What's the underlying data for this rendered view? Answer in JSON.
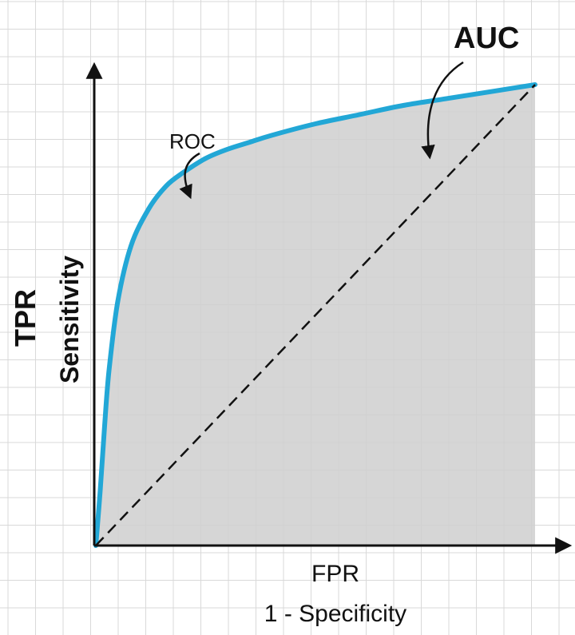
{
  "chart_data": {
    "type": "area",
    "title": "",
    "xlabel": "FPR",
    "xlabel_secondary": "1 - Specificity",
    "ylabel": "TPR",
    "ylabel_secondary": "Sensitivity",
    "xlim": [
      0,
      1
    ],
    "ylim": [
      0,
      1
    ],
    "grid": true,
    "legend": "none",
    "series": [
      {
        "name": "ROC",
        "style": "solid",
        "x": [
          0,
          0.01,
          0.02,
          0.03,
          0.05,
          0.08,
          0.12,
          0.16,
          0.2,
          0.25,
          0.3,
          0.35,
          0.4,
          0.5,
          0.6,
          0.7,
          0.8,
          0.9,
          1.0
        ],
        "y": [
          0,
          0.12,
          0.26,
          0.38,
          0.53,
          0.65,
          0.73,
          0.78,
          0.81,
          0.84,
          0.86,
          0.875,
          0.89,
          0.915,
          0.935,
          0.955,
          0.97,
          0.985,
          1.0
        ]
      },
      {
        "name": "",
        "style": "dashed",
        "x": [
          0,
          1
        ],
        "y": [
          0,
          1
        ]
      }
    ],
    "annotations": [
      {
        "text": "ROC",
        "target": "ROC"
      },
      {
        "text": "AUC",
        "target": "area"
      }
    ],
    "colors": {
      "roc_line": "#22a7d6",
      "area_fill": "#cfcfcf",
      "grid": "#d9d9d9",
      "axis": "#111111"
    }
  }
}
